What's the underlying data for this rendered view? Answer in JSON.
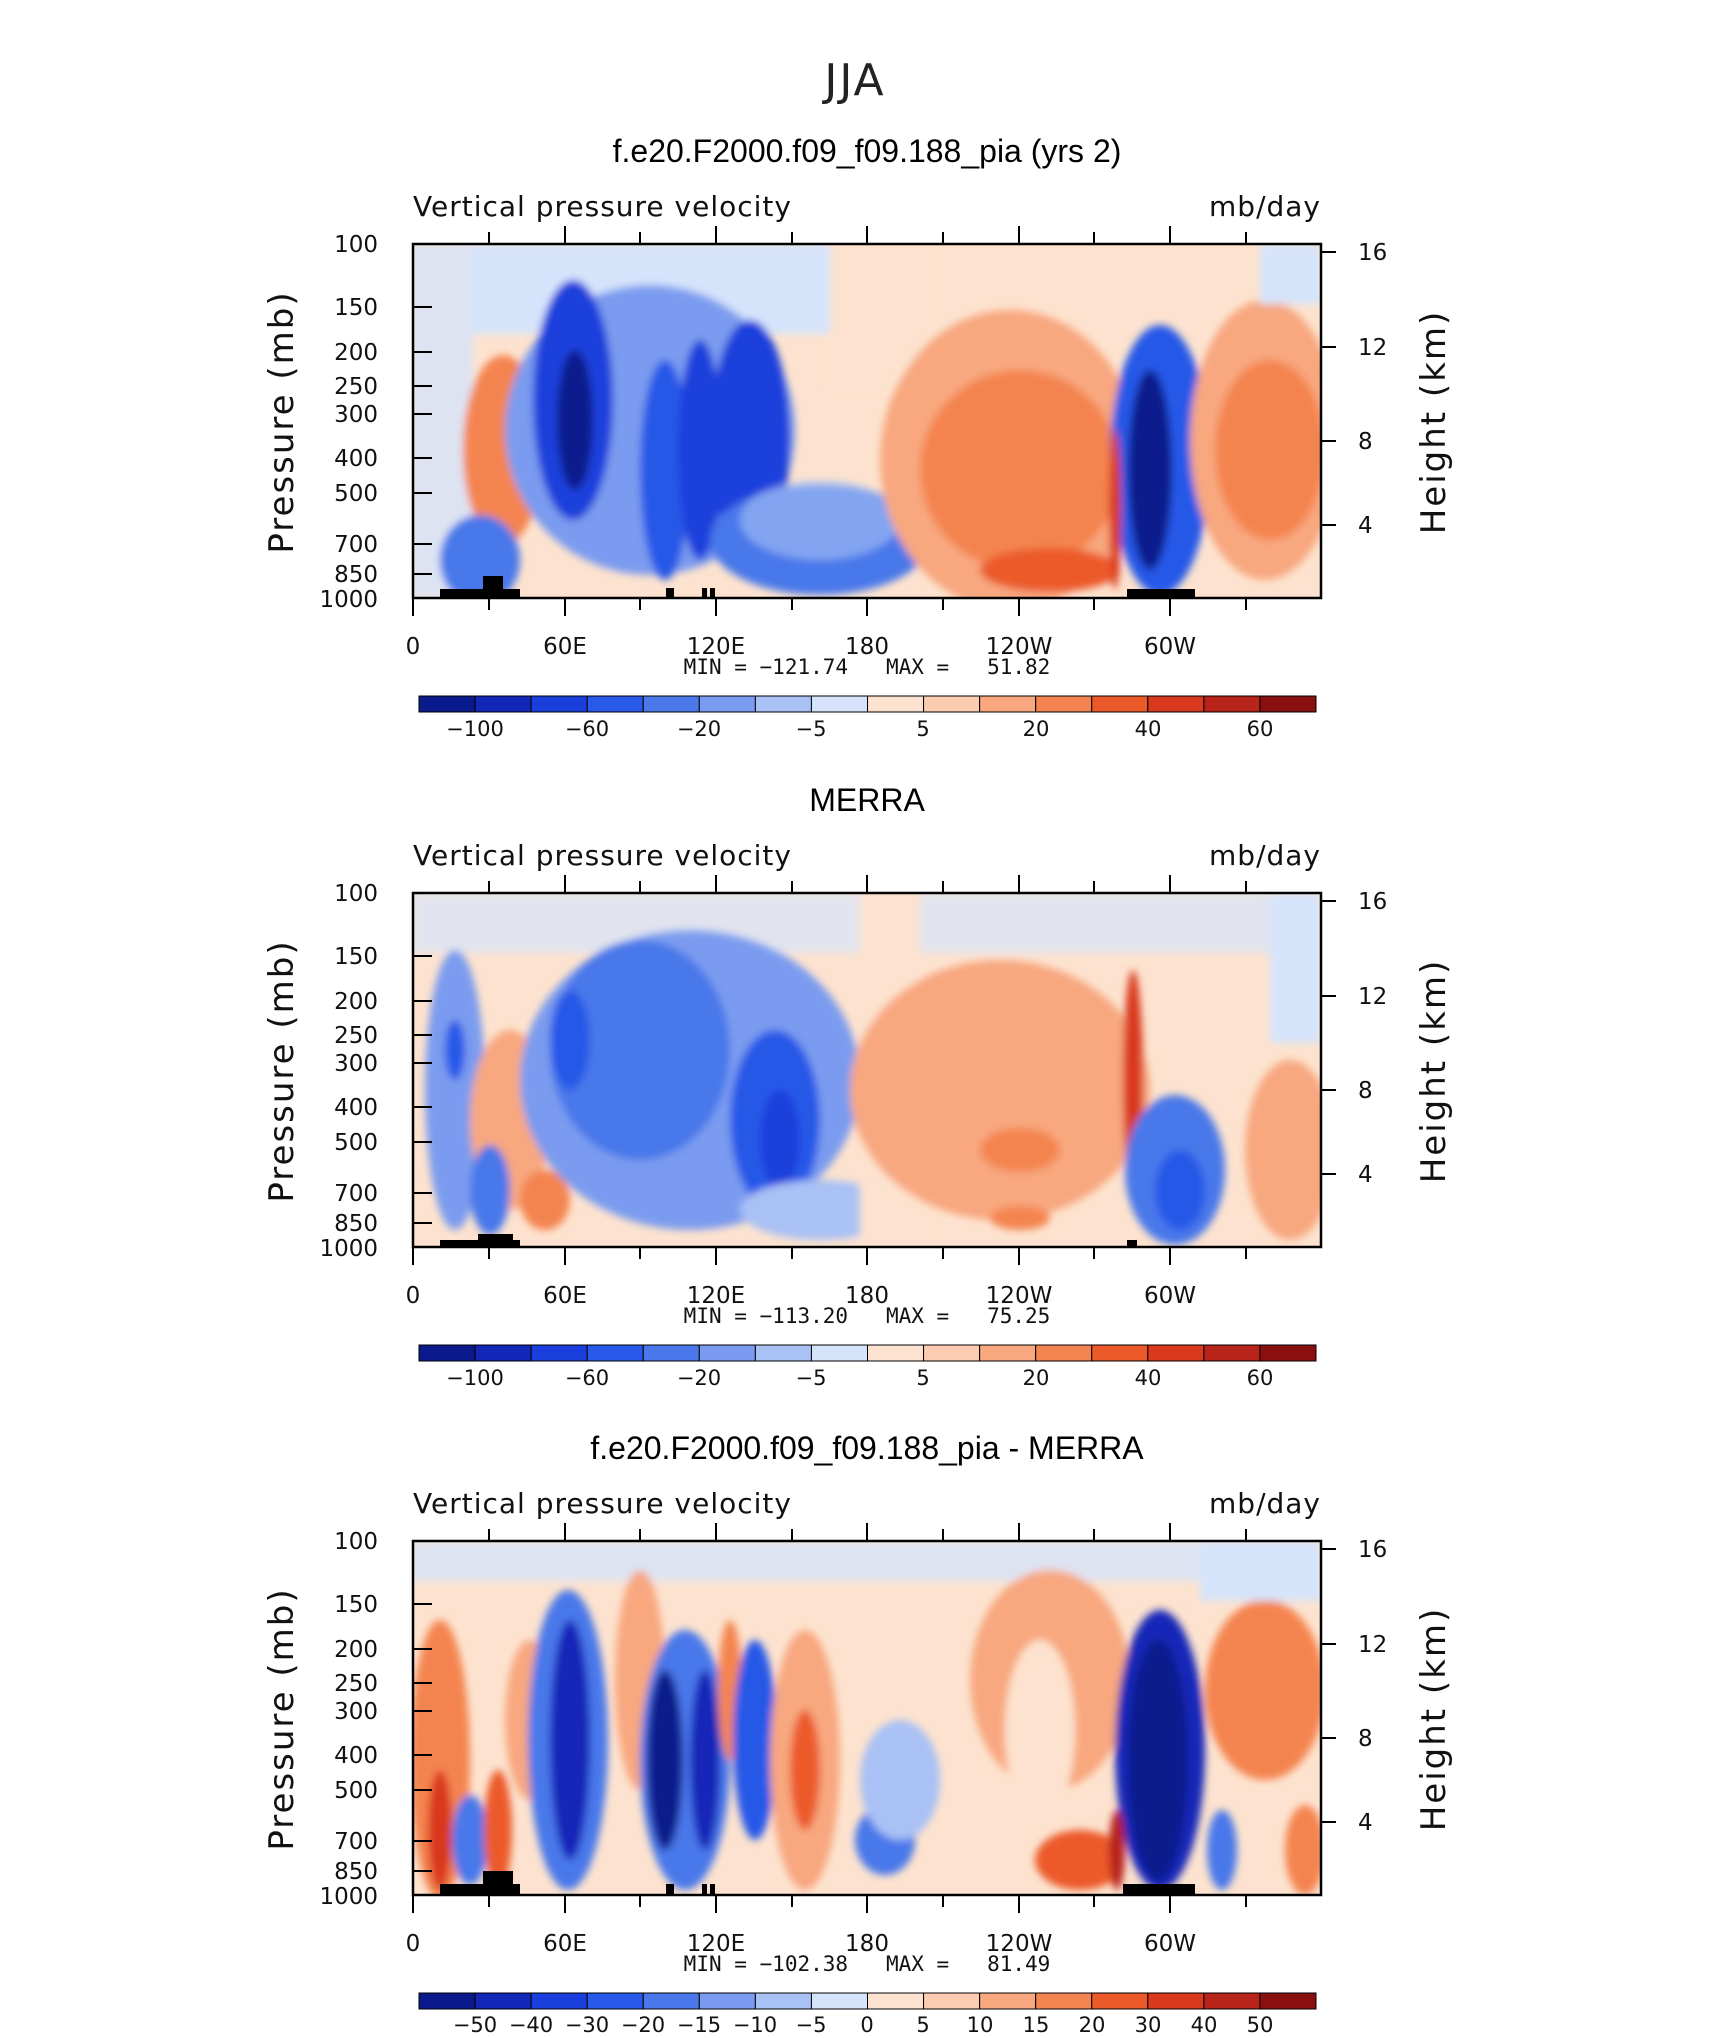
{
  "season_title": "JJA",
  "colormap_main": [
    "#0a1a8c",
    "#1226b8",
    "#1a3fdc",
    "#2859e8",
    "#4a78ea",
    "#7a9bef",
    "#a9c1f5",
    "#d6e4fb",
    "#fde3cf",
    "#fccbb1",
    "#f8a77f",
    "#f4844f",
    "#ec5a2a",
    "#d9391c",
    "#b8231a",
    "#8a0f0f"
  ],
  "colormap_diff": [
    "#0a1a8c",
    "#1226b8",
    "#1a3fdc",
    "#2859e8",
    "#4a78ea",
    "#7a9bef",
    "#a9c1f5",
    "#d6e4fb",
    "#fde3cf",
    "#fccbb1",
    "#f8a77f",
    "#f4844f",
    "#ec5a2a",
    "#d9391c",
    "#b8231a",
    "#8a0f0f"
  ],
  "panels": [
    {
      "title": "f.e20.F2000.f09_f09.188_pia (yrs 2)",
      "variable": "Vertical pressure velocity",
      "units": "mb/day",
      "ylabel": "Pressure (mb)",
      "y2label": "Height (km)",
      "minmax": "MIN = −121.74   MAX =   51.82",
      "colorbar_labels": [
        "−100",
        "−60",
        "−20",
        "−5",
        "5",
        "20",
        "40",
        "60"
      ]
    },
    {
      "title": "MERRA",
      "variable": "Vertical pressure velocity",
      "units": "mb/day",
      "ylabel": "Pressure (mb)",
      "y2label": "Height (km)",
      "minmax": "MIN = −113.20   MAX =   75.25",
      "colorbar_labels": [
        "−100",
        "−60",
        "−20",
        "−5",
        "5",
        "20",
        "40",
        "60"
      ]
    },
    {
      "title": "f.e20.F2000.f09_f09.188_pia - MERRA",
      "variable": "Vertical pressure velocity",
      "units": "mb/day",
      "ylabel": "Pressure (mb)",
      "y2label": "Height (km)",
      "minmax": "MIN = −102.38   MAX =   81.49",
      "colorbar_labels": [
        "−50",
        "−40",
        "−30",
        "−20",
        "−15",
        "−10",
        "−5",
        "0",
        "5",
        "10",
        "15",
        "20",
        "30",
        "40",
        "50"
      ]
    }
  ],
  "chart_data": [
    {
      "type": "heatmap",
      "title": "f.e20.F2000.f09_f09.188_pia (yrs 2)",
      "subtitle": "Vertical pressure velocity",
      "units": "mb/day",
      "x_ticks": [
        "0",
        "60E",
        "120E",
        "180",
        "120W",
        "60W"
      ],
      "y_ticks": [
        "100",
        "150",
        "200",
        "250",
        "300",
        "400",
        "500",
        "700",
        "850",
        "1000"
      ],
      "y2_ticks": [
        "16",
        "12",
        "8",
        "4"
      ],
      "ylabel": "Pressure (mb)",
      "y2label": "Height (km)",
      "min": -121.74,
      "max": 51.82,
      "x_range_deg": [
        0,
        360
      ],
      "y_log_pressure": true,
      "contour_levels": [
        -100,
        -80,
        -60,
        -40,
        -20,
        -10,
        -5,
        0,
        5,
        10,
        20,
        30,
        40,
        50,
        60
      ],
      "features": [
        {
          "lon": 65,
          "p": 330,
          "value": -110
        },
        {
          "lon": 105,
          "p": 420,
          "value": -70
        },
        {
          "lon": 135,
          "p": 360,
          "value": -80
        },
        {
          "lon": 160,
          "p": 700,
          "value": -30
        },
        {
          "lon": 35,
          "p": 420,
          "value": 20
        },
        {
          "lon": 235,
          "p": 450,
          "value": 25
        },
        {
          "lon": 290,
          "p": 500,
          "value": -120
        },
        {
          "lon": 335,
          "p": 420,
          "value": 25
        }
      ]
    },
    {
      "type": "heatmap",
      "title": "MERRA",
      "subtitle": "Vertical pressure velocity",
      "units": "mb/day",
      "x_ticks": [
        "0",
        "60E",
        "120E",
        "180",
        "120W",
        "60W"
      ],
      "y_ticks": [
        "100",
        "150",
        "200",
        "250",
        "300",
        "400",
        "500",
        "700",
        "850",
        "1000"
      ],
      "y2_ticks": [
        "16",
        "12",
        "8",
        "4"
      ],
      "ylabel": "Pressure (mb)",
      "y2label": "Height (km)",
      "min": -113.2,
      "max": 75.25,
      "x_range_deg": [
        0,
        360
      ],
      "y_log_pressure": true,
      "contour_levels": [
        -100,
        -80,
        -60,
        -40,
        -20,
        -10,
        -5,
        0,
        5,
        10,
        20,
        30,
        40,
        50,
        60
      ],
      "features": [
        {
          "lon": 70,
          "p": 300,
          "value": -50
        },
        {
          "lon": 145,
          "p": 500,
          "value": -60
        },
        {
          "lon": 40,
          "p": 600,
          "value": 15
        },
        {
          "lon": 235,
          "p": 500,
          "value": 20
        },
        {
          "lon": 287,
          "p": 400,
          "value": 60
        },
        {
          "lon": 300,
          "p": 700,
          "value": -30
        },
        {
          "lon": 345,
          "p": 600,
          "value": 10
        }
      ]
    },
    {
      "type": "heatmap",
      "title": "f.e20.F2000.f09_f09.188_pia - MERRA",
      "subtitle": "Vertical pressure velocity",
      "units": "mb/day",
      "x_ticks": [
        "0",
        "60E",
        "120E",
        "180",
        "120W",
        "60W"
      ],
      "y_ticks": [
        "100",
        "150",
        "200",
        "250",
        "300",
        "400",
        "500",
        "700",
        "850",
        "1000"
      ],
      "y2_ticks": [
        "16",
        "12",
        "8",
        "4"
      ],
      "ylabel": "Pressure (mb)",
      "y2label": "Height (km)",
      "min": -102.38,
      "max": 81.49,
      "x_range_deg": [
        0,
        360
      ],
      "y_log_pressure": true,
      "contour_levels": [
        -50,
        -40,
        -30,
        -20,
        -15,
        -10,
        -5,
        0,
        5,
        10,
        15,
        20,
        30,
        40,
        50
      ],
      "features": [
        {
          "lon": 65,
          "p": 400,
          "value": -60
        },
        {
          "lon": 100,
          "p": 400,
          "value": -60
        },
        {
          "lon": 150,
          "p": 450,
          "value": 30
        },
        {
          "lon": 15,
          "p": 450,
          "value": 30
        },
        {
          "lon": 290,
          "p": 450,
          "value": -100
        },
        {
          "lon": 250,
          "p": 800,
          "value": 30
        },
        {
          "lon": 330,
          "p": 330,
          "value": 30
        }
      ]
    }
  ]
}
